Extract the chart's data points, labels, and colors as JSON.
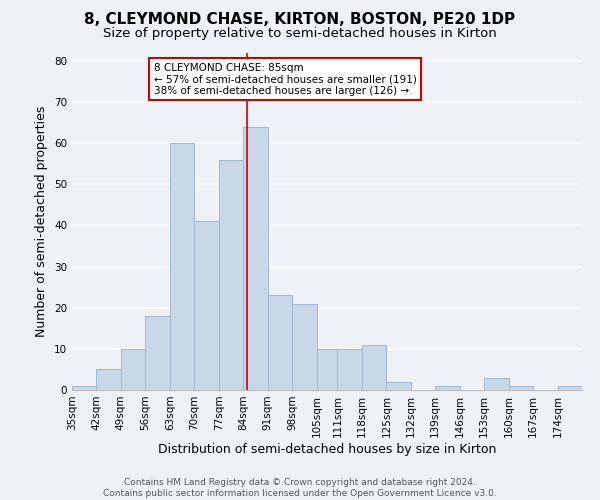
{
  "title": "8, CLEYMOND CHASE, KIRTON, BOSTON, PE20 1DP",
  "subtitle": "Size of property relative to semi-detached houses in Kirton",
  "xlabel": "Distribution of semi-detached houses by size in Kirton",
  "ylabel": "Number of semi-detached properties",
  "bin_labels": [
    "35sqm",
    "42sqm",
    "49sqm",
    "56sqm",
    "63sqm",
    "70sqm",
    "77sqm",
    "84sqm",
    "91sqm",
    "98sqm",
    "105sqm",
    "111sqm",
    "118sqm",
    "125sqm",
    "132sqm",
    "139sqm",
    "146sqm",
    "153sqm",
    "160sqm",
    "167sqm",
    "174sqm"
  ],
  "bin_edges": [
    35,
    42,
    49,
    56,
    63,
    70,
    77,
    84,
    91,
    98,
    105,
    111,
    118,
    125,
    132,
    139,
    146,
    153,
    160,
    167,
    174,
    181
  ],
  "counts": [
    1,
    5,
    10,
    18,
    60,
    41,
    56,
    64,
    23,
    21,
    10,
    10,
    11,
    2,
    0,
    1,
    0,
    3,
    1,
    0,
    1
  ],
  "bar_color": "#c8d8e8",
  "bar_edge_color": "#a0b8d0",
  "highlight_value": 85,
  "highlight_line_color": "#cc0000",
  "annotation_text_line1": "8 CLEYMOND CHASE: 85sqm",
  "annotation_text_line2": "← 57% of semi-detached houses are smaller (191)",
  "annotation_text_line3": "38% of semi-detached houses are larger (126) →",
  "annotation_box_color": "#ffffff",
  "annotation_box_edge_color": "#cc0000",
  "ylim": [
    0,
    82
  ],
  "yticks": [
    0,
    10,
    20,
    30,
    40,
    50,
    60,
    70,
    80
  ],
  "footer_line1": "Contains HM Land Registry data © Crown copyright and database right 2024.",
  "footer_line2": "Contains public sector information licensed under the Open Government Licence v3.0.",
  "background_color": "#eef2f7",
  "grid_color": "#ffffff",
  "title_fontsize": 11,
  "subtitle_fontsize": 9.5,
  "axis_label_fontsize": 9,
  "tick_fontsize": 7.5,
  "footer_fontsize": 6.5
}
